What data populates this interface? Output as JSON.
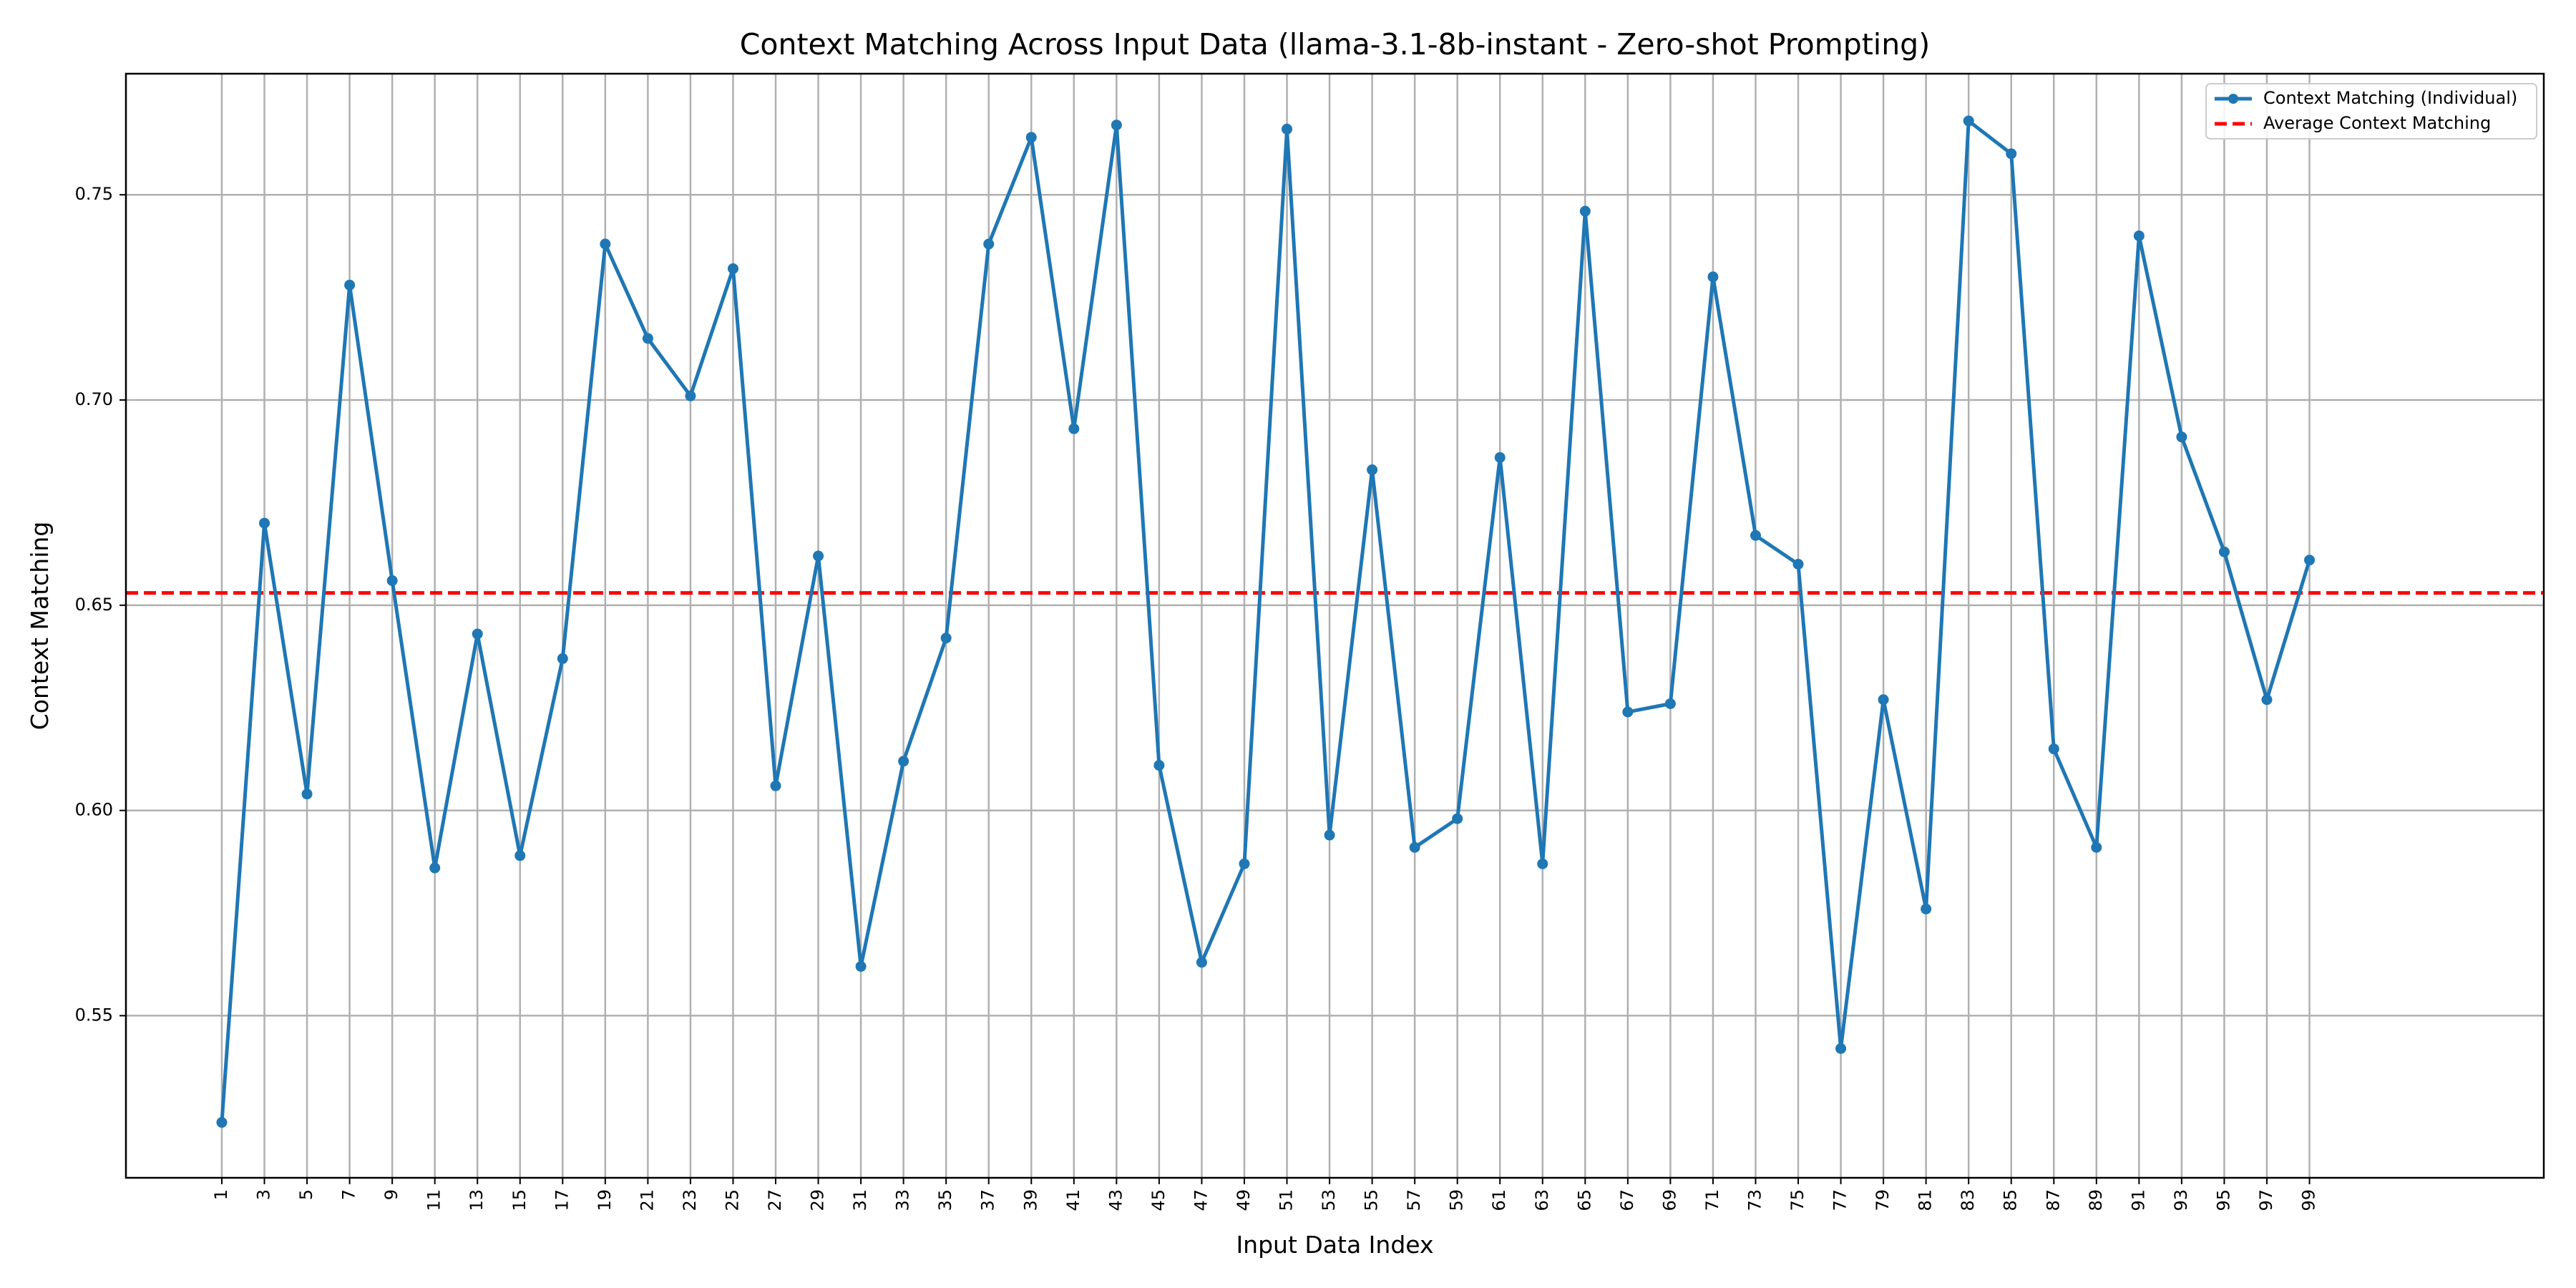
{
  "chart_data": {
    "type": "line",
    "title": "Context Matching Across Input Data (llama-3.1-8b-instant - Zero-shot Prompting)",
    "xlabel": "Input Data Index",
    "ylabel": "Context Matching",
    "x_tick_labels": [
      "1",
      "3",
      "5",
      "7",
      "9",
      "11",
      "13",
      "15",
      "17",
      "19",
      "21",
      "23",
      "25",
      "27",
      "29",
      "31",
      "33",
      "35",
      "37",
      "39",
      "41",
      "43",
      "45",
      "47",
      "49",
      "51",
      "53",
      "55",
      "57",
      "59",
      "61",
      "63",
      "65",
      "67",
      "69",
      "71",
      "73",
      "75",
      "77",
      "79",
      "81",
      "83",
      "85",
      "87",
      "89",
      "91",
      "93",
      "95",
      "97",
      "99"
    ],
    "y_ticks": [
      0.55,
      0.6,
      0.65,
      0.7,
      0.75
    ],
    "y_tick_labels": [
      "0.55",
      "0.60",
      "0.65",
      "0.70",
      "0.75"
    ],
    "ylim": [
      0.5105,
      0.7795
    ],
    "xlim": [
      -3.5,
      110
    ],
    "grid": true,
    "legend_position": "top-right",
    "series": [
      {
        "name": "Context Matching (Individual)",
        "color": "#1f77b4",
        "style": "solid-with-markers",
        "x": [
          1,
          3,
          5,
          7,
          9,
          11,
          13,
          15,
          17,
          19,
          21,
          23,
          25,
          27,
          29,
          31,
          33,
          35,
          37,
          39,
          41,
          43,
          45,
          47,
          49,
          51,
          53,
          55,
          57,
          59,
          61,
          63,
          65,
          67,
          69,
          71,
          73,
          75,
          77,
          79,
          81,
          83,
          85,
          87,
          89,
          91,
          93,
          95,
          97,
          99
        ],
        "y": [
          0.524,
          0.67,
          0.604,
          0.728,
          0.656,
          0.586,
          0.643,
          0.589,
          0.637,
          0.738,
          0.715,
          0.701,
          0.732,
          0.606,
          0.662,
          0.562,
          0.612,
          0.642,
          0.738,
          0.764,
          0.693,
          0.767,
          0.611,
          0.563,
          0.587,
          0.766,
          0.594,
          0.683,
          0.591,
          0.598,
          0.686,
          0.587,
          0.746,
          0.624,
          0.626,
          0.73,
          0.667,
          0.66,
          0.542,
          0.627,
          0.576,
          0.768,
          0.76,
          0.615,
          0.591,
          0.74,
          0.691,
          0.663,
          0.627,
          0.661
        ]
      },
      {
        "name": "Average Context Matching",
        "color": "#ff0000",
        "style": "dashed",
        "value": 0.653
      }
    ]
  }
}
